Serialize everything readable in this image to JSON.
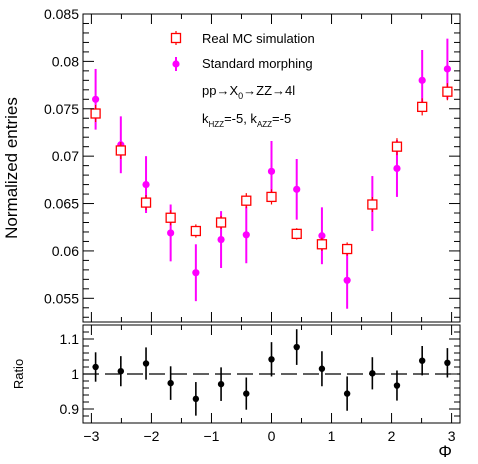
{
  "chart_data": [
    {
      "type": "scatter",
      "panel": "main",
      "ylabel": "Normalized entries",
      "xlim": [
        -3.14,
        3.14
      ],
      "ylim": [
        0.0525,
        0.085
      ],
      "yticks": [
        "0.055",
        "0.06",
        "0.065",
        "0.07",
        "0.075",
        "0.08",
        "0.085"
      ],
      "ytick_values": [
        0.055,
        0.06,
        0.065,
        0.07,
        0.075,
        0.08,
        0.085
      ],
      "legend_position": "top-center",
      "annotations": {
        "process": "pp→X₀→ZZ→4l",
        "kappas": "k_HZZ=-5, k_AZZ=-5"
      },
      "series": [
        {
          "name": "Real MC simulation",
          "marker": "open-square",
          "color": "#ff0000",
          "x": [
            -2.93,
            -2.51,
            -2.09,
            -1.68,
            -1.26,
            -0.84,
            -0.42,
            0.0,
            0.42,
            0.84,
            1.26,
            1.68,
            2.09,
            2.51,
            2.93
          ],
          "y": [
            0.0745,
            0.0706,
            0.0651,
            0.0635,
            0.0621,
            0.063,
            0.0653,
            0.0657,
            0.0618,
            0.0607,
            0.0602,
            0.0649,
            0.071,
            0.0752,
            0.0768
          ],
          "err": [
            0.0009,
            0.0009,
            0.0008,
            0.0008,
            0.0007,
            0.0007,
            0.0008,
            0.0008,
            0.0006,
            0.0007,
            0.0007,
            0.0008,
            0.0009,
            0.0009,
            0.0009
          ]
        },
        {
          "name": "Standard morphing",
          "marker": "filled-circle",
          "color": "#ff00ff",
          "x": [
            -2.93,
            -2.51,
            -2.09,
            -1.68,
            -1.26,
            -0.84,
            -0.42,
            0.0,
            0.42,
            0.84,
            1.26,
            1.68,
            2.09,
            2.51,
            2.93
          ],
          "y": [
            0.076,
            0.0712,
            0.067,
            0.0619,
            0.0577,
            0.0612,
            0.0617,
            0.0684,
            0.0665,
            0.0616,
            0.0569,
            0.065,
            0.0687,
            0.078,
            0.0792
          ],
          "err": [
            0.0032,
            0.003,
            0.003,
            0.003,
            0.003,
            0.003,
            0.003,
            0.0032,
            0.0032,
            0.003,
            0.003,
            0.0029,
            0.003,
            0.0032,
            0.0032
          ]
        }
      ]
    },
    {
      "type": "scatter",
      "panel": "ratio",
      "xlabel": "Φ",
      "ylabel": "Ratio",
      "xlim": [
        -3.14,
        3.14
      ],
      "ylim": [
        0.86,
        1.14
      ],
      "xticks": [
        "−3",
        "−2",
        "−1",
        "0",
        "1",
        "2",
        "3"
      ],
      "xtick_values": [
        -3,
        -2,
        -1,
        0,
        1,
        2,
        3
      ],
      "yticks": [
        "0.9",
        "1",
        "1.1"
      ],
      "ytick_values": [
        0.9,
        1.0,
        1.1
      ],
      "reference_line": 1.0,
      "series": [
        {
          "marker": "filled-circle",
          "color": "#000000",
          "x": [
            -2.93,
            -2.51,
            -2.09,
            -1.68,
            -1.26,
            -0.84,
            -0.42,
            0.0,
            0.42,
            0.84,
            1.26,
            1.68,
            2.09,
            2.51,
            2.93
          ],
          "y": [
            1.02,
            1.008,
            1.03,
            0.974,
            0.929,
            0.971,
            0.944,
            1.042,
            1.077,
            1.015,
            0.944,
            1.002,
            0.967,
            1.038,
            1.032
          ],
          "err": [
            0.042,
            0.043,
            0.046,
            0.048,
            0.048,
            0.048,
            0.046,
            0.049,
            0.051,
            0.05,
            0.049,
            0.046,
            0.043,
            0.042,
            0.042
          ]
        }
      ]
    }
  ]
}
